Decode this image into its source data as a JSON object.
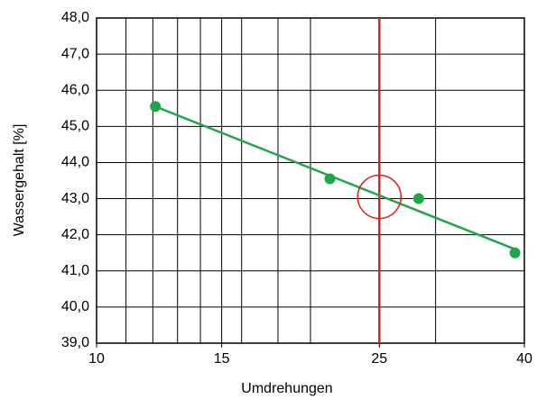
{
  "chart_data": {
    "type": "scatter",
    "xlabel": "Umdrehungen",
    "ylabel": "Wassergehalt [%]",
    "xscale": "log",
    "xlim": [
      10,
      40
    ],
    "xticks": [
      10,
      15,
      25,
      40
    ],
    "xgrid": [
      11,
      12,
      13,
      14,
      15,
      16,
      18,
      20,
      30
    ],
    "ylim": [
      39,
      48
    ],
    "yticks": [
      {
        "value": 39,
        "label": "39,0"
      },
      {
        "value": 40,
        "label": "40,0"
      },
      {
        "value": 41,
        "label": "41,0"
      },
      {
        "value": 42,
        "label": "42,0"
      },
      {
        "value": 43,
        "label": "43,0"
      },
      {
        "value": 44,
        "label": "44,0"
      },
      {
        "value": 45,
        "label": "45,0"
      },
      {
        "value": 46,
        "label": "46,0"
      },
      {
        "value": 47,
        "label": "47,0"
      },
      {
        "value": 48,
        "label": "48,0"
      }
    ],
    "grid": true,
    "series": [
      {
        "color": "#1fa64a",
        "x": [
          12.1,
          21.3,
          28.4,
          38.8
        ],
        "values": [
          45.55,
          43.55,
          43.0,
          41.5
        ]
      }
    ],
    "trendline": {
      "color": "#1fa64a",
      "x": [
        12.1,
        38.8
      ],
      "values": [
        45.55,
        41.6
      ]
    },
    "reference": {
      "color": "#e8191b",
      "x": 25,
      "y": 43.05
    }
  }
}
